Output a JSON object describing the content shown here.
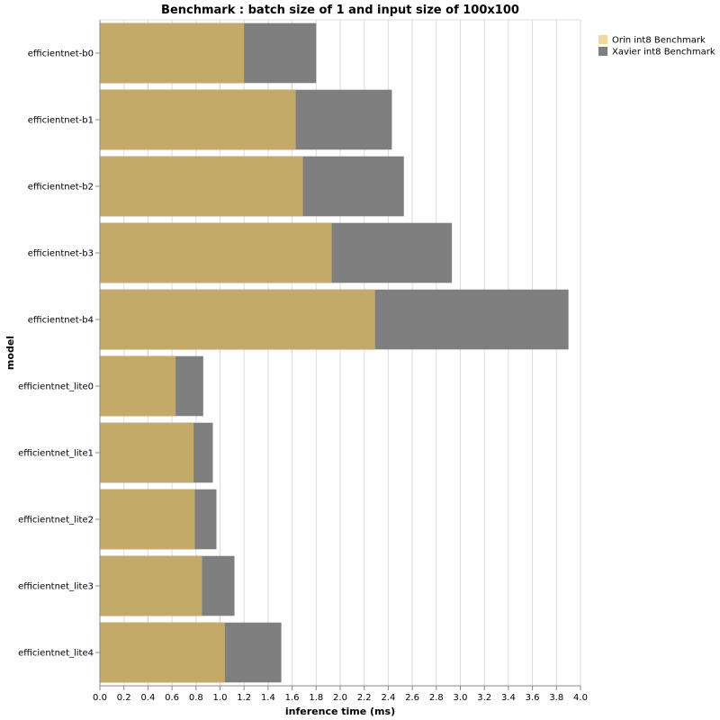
{
  "chart_data": {
    "type": "bar",
    "orientation": "horizontal",
    "title": "Benchmark : batch size of 1 and input size of 100x100",
    "xlabel": "inference time (ms)",
    "ylabel": "model",
    "xlim": [
      0,
      4.0
    ],
    "xticks": [
      "0.0",
      "0.2",
      "0.4",
      "0.6",
      "0.8",
      "1.0",
      "1.2",
      "1.4",
      "1.6",
      "1.8",
      "2.0",
      "2.2",
      "2.4",
      "2.6",
      "2.8",
      "3.0",
      "3.2",
      "3.4",
      "3.6",
      "3.8",
      "4.0"
    ],
    "grid": true,
    "legend_position": "top-right",
    "categories": [
      "efficientnet-b0",
      "efficientnet-b1",
      "efficientnet-b2",
      "efficientnet-b3",
      "efficientnet-b4",
      "efficientnet_lite0",
      "efficientnet_lite1",
      "efficientnet_lite2",
      "efficientnet_lite3",
      "efficientnet_lite4"
    ],
    "series": [
      {
        "name": "Xavier int8 Benchmark",
        "color": "#7f7f7f",
        "values": [
          1.8,
          2.43,
          2.53,
          2.93,
          3.9,
          0.86,
          0.94,
          0.97,
          1.12,
          1.51
        ]
      },
      {
        "name": "Orin int8 Benchmark",
        "color": "#c4aa68",
        "values": [
          1.2,
          1.63,
          1.69,
          1.93,
          2.29,
          0.63,
          0.78,
          0.79,
          0.85,
          1.04
        ]
      }
    ],
    "legend": [
      {
        "name": "Orin int8 Benchmark",
        "swatch_color": "#f2d997"
      },
      {
        "name": "Xavier int8 Benchmark",
        "swatch_color": "#7f7f7f"
      }
    ]
  }
}
